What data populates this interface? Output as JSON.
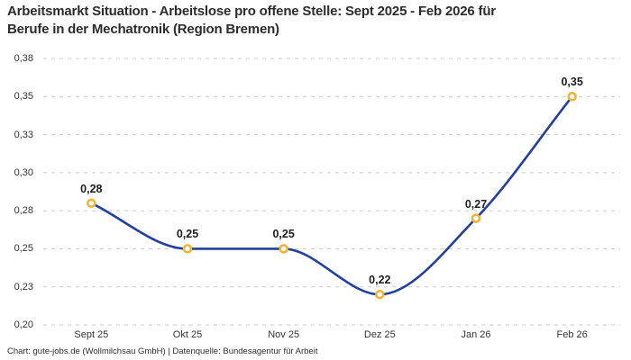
{
  "footer": "Chart: gute-jobs.de (Wollmilchsau GmbH) | Datenquelle: Bundesagentur für Arbeit",
  "chart_data": {
    "type": "line",
    "title": "Arbeitsmarkt Situation - Arbeitslose pro offene Stelle: Sept 2025 - Feb 2026 für Berufe in der Mechatronik (Region Bremen)",
    "title_lines": [
      "Arbeitsmarkt Situation - Arbeitslose pro offene Stelle: Sept 2025 - Feb 2026 für",
      "Berufe in der Mechatronik (Region Bremen)"
    ],
    "categories": [
      "Sept 25",
      "Okt 25",
      "Nov 25",
      "Dez 25",
      "Jan 26",
      "Feb 26"
    ],
    "series": [
      {
        "name": "Arbeitslose pro offene Stelle",
        "values": [
          0.28,
          0.25,
          0.25,
          0.22,
          0.27,
          0.35
        ]
      }
    ],
    "point_labels": [
      "0,28",
      "0,25",
      "0,25",
      "0,22",
      "0,27",
      "0,35"
    ],
    "xlabel": "",
    "ylabel": "",
    "ylim": [
      0.2,
      0.375
    ],
    "ytick_step": 0.025,
    "yticks": [
      {
        "value": 0.2,
        "label": "0,20"
      },
      {
        "value": 0.225,
        "label": "0,23"
      },
      {
        "value": 0.25,
        "label": "0,25"
      },
      {
        "value": 0.275,
        "label": "0,28"
      },
      {
        "value": 0.3,
        "label": "0,30"
      },
      {
        "value": 0.325,
        "label": "0,33"
      },
      {
        "value": 0.35,
        "label": "0,35"
      },
      {
        "value": 0.375,
        "label": "0,38"
      }
    ],
    "grid": "horizontal-dashed",
    "legend": "none",
    "colors": {
      "line": "#23419b",
      "marker_ring": "#f2b32e",
      "marker_fill": "#ffffff",
      "grid": "#cbcbcb",
      "axis_text": "#333333",
      "point_label": "#1d1d1d",
      "title": "#2c2c2c"
    }
  }
}
